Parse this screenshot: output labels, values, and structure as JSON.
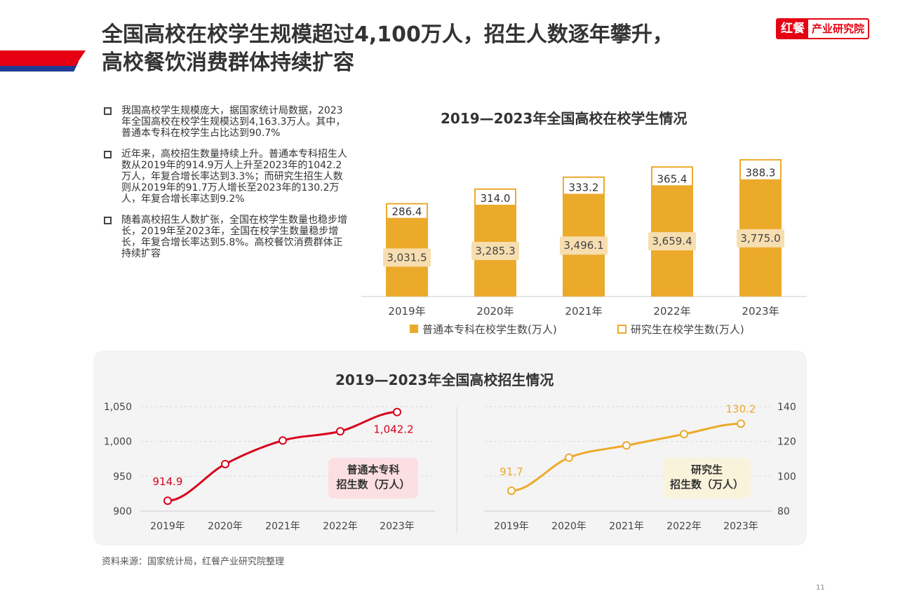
{
  "header": {
    "title_line1": "全国高校在校学生规模超过4,100万人，招生人数逐年攀升，",
    "title_line2": "高校餐饮消费群体持续扩容",
    "logo_left": "红餐",
    "logo_right": "产业研究院"
  },
  "bullets": [
    "我国高校学生规模庞大，据国家统计局数据，2023年全国高校在校学生规模达到4,163.3万人。其中，普通本专科在校学生占比达到90.7%",
    "近年来，高校招生数量持续上升。普通本专科招生人数从2019年的914.9万人上升至2023年的1042.2万人，年复合增长率达到3.3%；而研究生招生人数则从2019年的91.7万人增长至2023年的130.2万人，年复合增长率达到9.2%",
    "随着高校招生人数扩张，全国在校学生数量也稳步增长，2019年至2023年，全国在校学生数量稳步增长，年复合增长率达到5.8%。高校餐饮消费群体正持续扩容"
  ],
  "chart_data": [
    {
      "type": "bar",
      "stacked": true,
      "title": "2019—2023年全国高校在校学生情况",
      "categories": [
        "2019年",
        "2020年",
        "2021年",
        "2022年",
        "2023年"
      ],
      "series": [
        {
          "name": "普通本专科在校学生数(万人)",
          "values": [
            3031.5,
            3285.3,
            3496.1,
            3659.4,
            3775.0
          ],
          "labels": [
            "3,031.5",
            "3,285.3",
            "3,496.1",
            "3,659.4",
            "3,775.0"
          ],
          "color": "#ecaa2b"
        },
        {
          "name": "研究生在校学生数(万人)",
          "values": [
            286.4,
            314.0,
            333.2,
            365.4,
            388.3
          ],
          "labels": [
            "286.4",
            "314.0",
            "333.2",
            "365.4",
            "388.3"
          ],
          "color": "#ffffff"
        }
      ],
      "legend": "bottom"
    },
    {
      "type": "line",
      "title": "2019—2023年全国高校招生情况",
      "categories": [
        "2019年",
        "2020年",
        "2021年",
        "2022年",
        "2023年"
      ],
      "panels": [
        {
          "name": "普通本专科招生数（万人）",
          "label_lines": [
            "普通本专科",
            "招生数（万人）"
          ],
          "values": [
            914.9,
            967.5,
            1001.3,
            1014.5,
            1042.2
          ],
          "ylim": [
            900,
            1050
          ],
          "yticks": [
            "900",
            "950",
            "1,000",
            "1,050"
          ],
          "ytickvals": [
            900,
            950,
            1000,
            1050
          ],
          "first_label": "914.9",
          "last_label": "1,042.2",
          "color": "#d9001b",
          "badge_color": "#fbdfe2"
        },
        {
          "name": "研究生招生数（万人）",
          "label_lines": [
            "研究生",
            "招生数（万人）"
          ],
          "values": [
            91.7,
            110.7,
            117.7,
            124.2,
            130.2
          ],
          "ylim": [
            80,
            140
          ],
          "yticks": [
            "80",
            "100",
            "120",
            "140"
          ],
          "ytickvals": [
            80,
            100,
            120,
            140
          ],
          "first_label": "91.7",
          "last_label": "130.2",
          "color": "#ecaa2b",
          "badge_color": "#faf3dc"
        }
      ]
    }
  ],
  "footer": {
    "source": "资料来源：国家统计局，红餐产业研究院整理",
    "page": "11"
  }
}
